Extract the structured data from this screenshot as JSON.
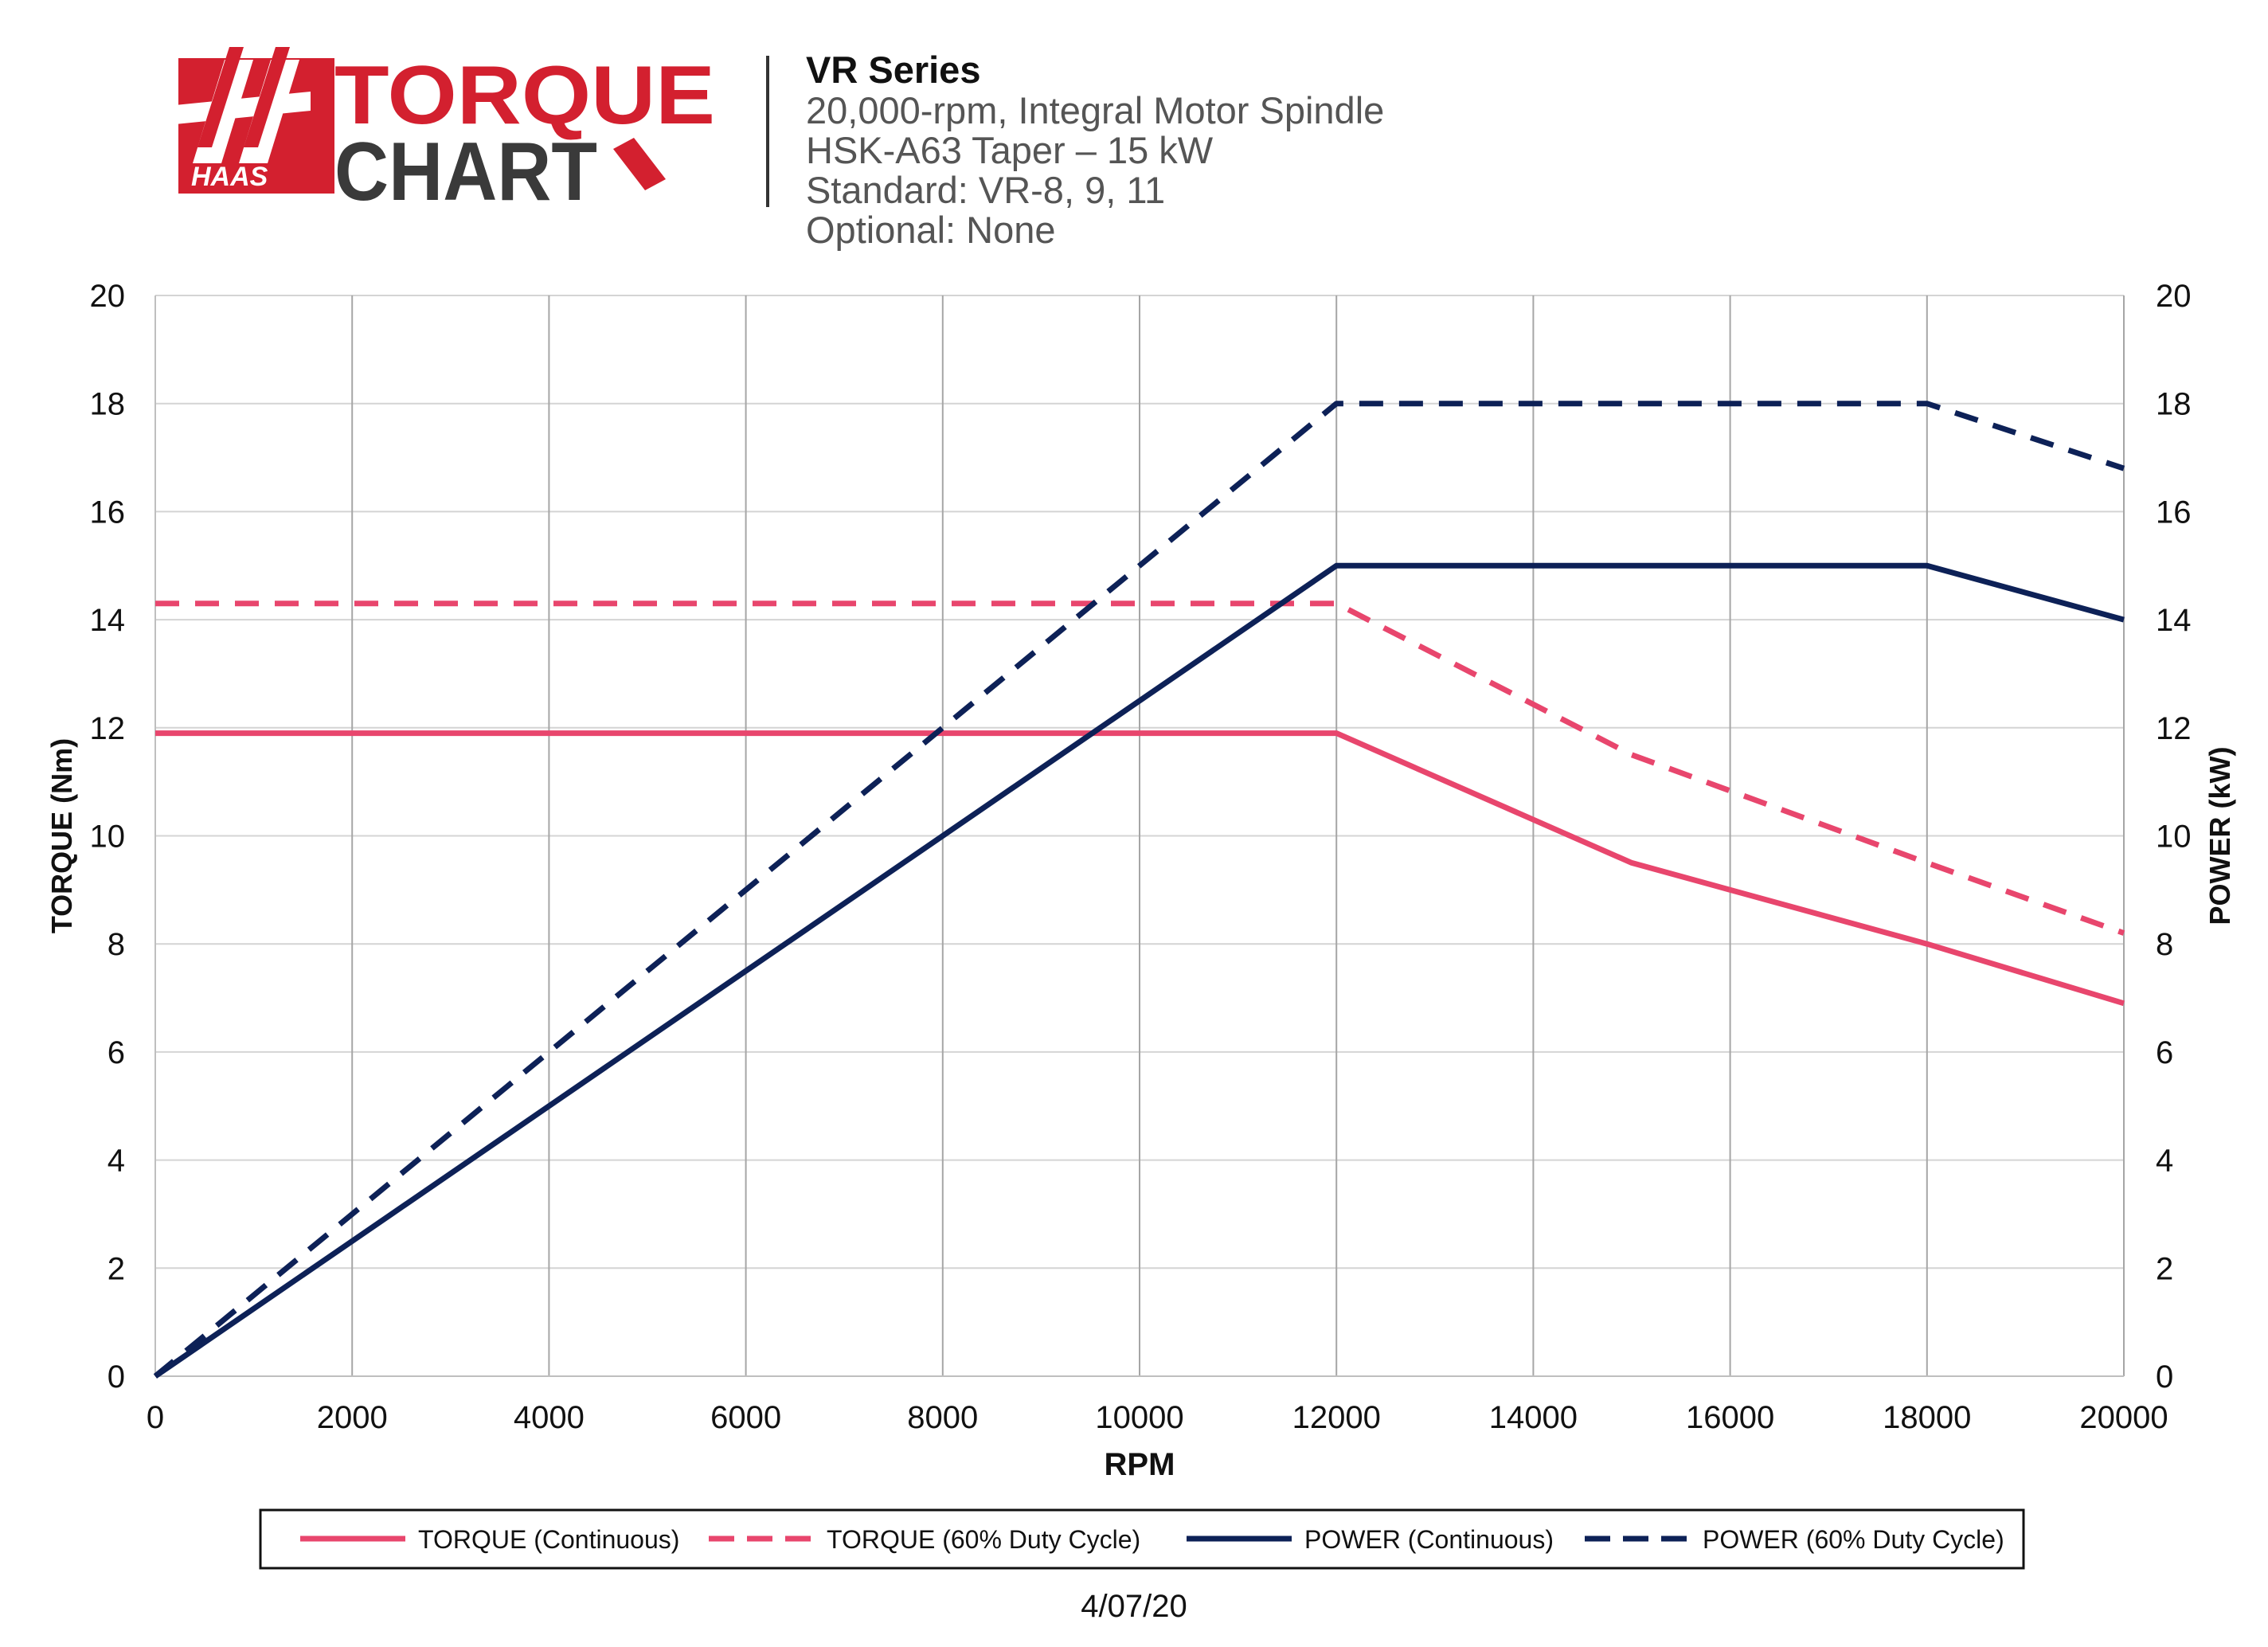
{
  "brand": {
    "logo_word": "HAAS",
    "logo_line1": "TORQUE",
    "logo_line2": "CHART",
    "red": "#d3202f",
    "dark": "#3a3a3a"
  },
  "header": {
    "title": "VR Series",
    "lines": [
      "20,000-rpm, Integral Motor Spindle",
      "HSK-A63 Taper – 15 kW",
      "Standard: VR-8, 9, 11",
      "Optional: None"
    ]
  },
  "footer": {
    "date": "4/07/20"
  },
  "chart_data": {
    "type": "line",
    "xlabel": "RPM",
    "ylabel": "TORQUE (Nm)",
    "y2label": "POWER (kW)",
    "xlim": [
      0,
      20000
    ],
    "ylim": [
      0,
      20
    ],
    "y2lim": [
      0,
      20
    ],
    "xticks": [
      0,
      2000,
      4000,
      6000,
      8000,
      10000,
      12000,
      14000,
      16000,
      18000,
      20000
    ],
    "yticks": [
      0,
      2,
      4,
      6,
      8,
      10,
      12,
      14,
      16,
      18,
      20
    ],
    "grid": true,
    "legend_position": "bottom",
    "series": [
      {
        "name": "TORQUE (Continuous)",
        "axis": "left",
        "color": "#e8466d",
        "dashed": false,
        "x": [
          0,
          12000,
          15000,
          18000,
          20000
        ],
        "y": [
          11.9,
          11.9,
          9.5,
          8.0,
          6.9
        ]
      },
      {
        "name": "TORQUE (60% Duty Cycle)",
        "axis": "left",
        "color": "#e8466d",
        "dashed": true,
        "x": [
          0,
          12000,
          15000,
          18000,
          20000
        ],
        "y": [
          14.3,
          14.3,
          11.5,
          9.5,
          8.2
        ]
      },
      {
        "name": "POWER (Continuous)",
        "axis": "right",
        "color": "#0d2157",
        "dashed": false,
        "x": [
          0,
          12000,
          18000,
          20000
        ],
        "y": [
          0,
          15,
          15,
          14
        ]
      },
      {
        "name": "POWER (60% Duty Cycle)",
        "axis": "right",
        "color": "#0d2157",
        "dashed": true,
        "x": [
          0,
          12000,
          18000,
          20000
        ],
        "y": [
          0,
          18,
          18,
          16.8
        ]
      }
    ]
  }
}
